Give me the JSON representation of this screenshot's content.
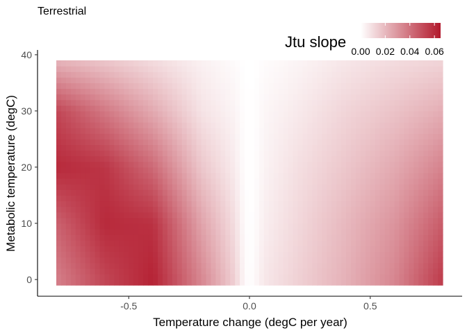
{
  "chart_data": {
    "type": "heatmap",
    "subtitle": "Terrestrial",
    "xlabel": "Temperature change (degC per year)",
    "ylabel": "Metabolic temperature (degC)",
    "xlim": [
      -0.8,
      0.8
    ],
    "ylim": [
      -1,
      39
    ],
    "x_ticks": [
      -0.5,
      0.0,
      0.5
    ],
    "x_tick_labels": [
      "-0.5",
      "0.0",
      "0.5"
    ],
    "y_ticks": [
      0,
      10,
      20,
      30,
      40
    ],
    "y_tick_labels": [
      "0",
      "10",
      "20",
      "30",
      "40"
    ],
    "grid": false,
    "x_step": 0.02,
    "y_step": 1,
    "fill": {
      "name": "Jtu slope",
      "low_color": "#ffffff",
      "high_color": "#b2182b",
      "limits": [
        0,
        0.065
      ],
      "breaks": [
        0.0,
        0.02,
        0.04,
        0.06
      ],
      "break_labels": [
        "0.00",
        "0.02",
        "0.04",
        "0.06"
      ],
      "legend_position": "top-right"
    },
    "surface_samples": {
      "x": [
        -0.8,
        -0.6,
        -0.4,
        -0.2,
        0.0,
        0.2,
        0.4,
        0.6,
        0.8
      ],
      "y": [
        0,
        10,
        20,
        30,
        39
      ],
      "z": [
        [
          0.036,
          0.052,
          0.062,
          0.034,
          0.004,
          0.013,
          0.022,
          0.034,
          0.055
        ],
        [
          0.044,
          0.06,
          0.058,
          0.026,
          0.002,
          0.011,
          0.02,
          0.03,
          0.046
        ],
        [
          0.06,
          0.057,
          0.042,
          0.016,
          0.001,
          0.009,
          0.016,
          0.024,
          0.035
        ],
        [
          0.052,
          0.038,
          0.024,
          0.008,
          0.001,
          0.006,
          0.012,
          0.017,
          0.023
        ],
        [
          0.021,
          0.016,
          0.01,
          0.004,
          0.0,
          0.003,
          0.007,
          0.01,
          0.012
        ]
      ]
    }
  }
}
